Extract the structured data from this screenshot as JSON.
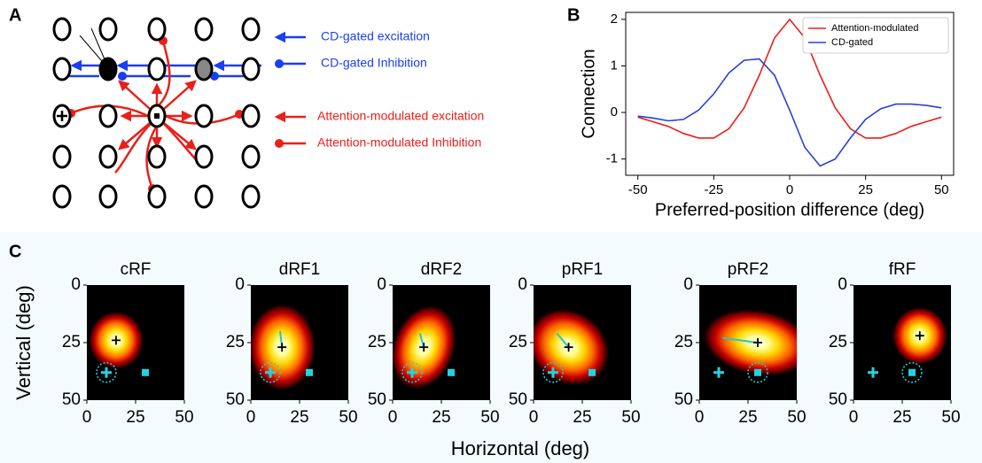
{
  "panel_labels": [
    "A",
    "B",
    "C"
  ],
  "diagram": {
    "legend": [
      "CD-gated excitation",
      "CD-gated Inhibition",
      "Attention-modulated excitation",
      "Attention-modulated Inhibition"
    ]
  },
  "panel_c": {
    "xlabel": "Horizontal (deg)",
    "ylabel": "Vertical (deg)"
  },
  "chart_data": [
    {
      "type": "line",
      "xlabel": "Preferred-position difference (deg)",
      "ylabel": "Connection",
      "x": [
        -50,
        -45,
        -40,
        -35,
        -30,
        -25,
        -20,
        -15,
        -10,
        -5,
        0,
        5,
        10,
        15,
        20,
        25,
        30,
        35,
        40,
        45,
        50
      ],
      "series": [
        {
          "name": "Attention-modulated",
          "color": "#e8201c",
          "values": [
            -0.1,
            -0.2,
            -0.3,
            -0.45,
            -0.55,
            -0.55,
            -0.35,
            0.1,
            0.8,
            1.6,
            2.0,
            1.6,
            0.8,
            0.1,
            -0.35,
            -0.55,
            -0.55,
            -0.45,
            -0.3,
            -0.2,
            -0.1
          ]
        },
        {
          "name": "CD-gated",
          "color": "#2a3fd6",
          "values": [
            -0.08,
            -0.12,
            -0.18,
            -0.15,
            0.05,
            0.4,
            0.85,
            1.12,
            1.15,
            0.8,
            0.05,
            -0.75,
            -1.15,
            -1.0,
            -0.55,
            -0.15,
            0.08,
            0.18,
            0.18,
            0.15,
            0.1
          ]
        }
      ],
      "xlim": [
        -54,
        54
      ],
      "ylim": [
        -1.35,
        2.15
      ],
      "xticks": [
        -50,
        -25,
        0,
        25,
        50
      ],
      "yticks": [
        -1,
        0,
        1,
        2
      ],
      "legend": "upper right"
    },
    {
      "type": "heatmap",
      "title": "cRF",
      "xlim": [
        0,
        50
      ],
      "ylim": [
        50,
        0
      ],
      "xticks": [
        0,
        25,
        50
      ],
      "yticks": [
        0,
        25,
        50
      ],
      "rf": {
        "x": 15,
        "y": 24,
        "sx": 9,
        "sy": 8,
        "angle": 0
      },
      "markers": [
        {
          "shape": "plus",
          "x": 10,
          "y": 38,
          "circled": true
        },
        {
          "shape": "square",
          "x": 30,
          "y": 38,
          "circled": false
        }
      ]
    },
    {
      "type": "heatmap",
      "title": "dRF1",
      "xlim": [
        0,
        50
      ],
      "ylim": [
        50,
        0
      ],
      "xticks": [
        0,
        25,
        50
      ],
      "yticks": [
        0,
        25,
        50
      ],
      "rf": {
        "x": 16,
        "y": 27,
        "sx": 11,
        "sy": 12,
        "angle": 0
      },
      "shift": {
        "x": [
          15,
          16
        ],
        "y": [
          20,
          27
        ]
      },
      "markers": [
        {
          "shape": "plus",
          "x": 10,
          "y": 38,
          "circled": true
        },
        {
          "shape": "square",
          "x": 30,
          "y": 38,
          "circled": false
        }
      ]
    },
    {
      "type": "heatmap",
      "title": "dRF2",
      "xlim": [
        0,
        50
      ],
      "ylim": [
        50,
        0
      ],
      "xticks": [
        0,
        25,
        50
      ],
      "yticks": [
        0,
        25,
        50
      ],
      "rf": {
        "x": 16,
        "y": 27,
        "sx": 10,
        "sy": 12,
        "angle": 20
      },
      "shift": {
        "x": [
          14,
          16
        ],
        "y": [
          21,
          27
        ]
      },
      "markers": [
        {
          "shape": "plus",
          "x": 10,
          "y": 38,
          "circled": true
        },
        {
          "shape": "square",
          "x": 30,
          "y": 38,
          "circled": false
        }
      ]
    },
    {
      "type": "heatmap",
      "title": "pRF1",
      "xlim": [
        0,
        50
      ],
      "ylim": [
        50,
        0
      ],
      "xticks": [
        0,
        25,
        50
      ],
      "yticks": [
        0,
        25,
        50
      ],
      "rf": {
        "x": 18,
        "y": 27,
        "sx": 14,
        "sy": 10,
        "angle": 35
      },
      "shift": {
        "x": [
          12,
          18
        ],
        "y": [
          21,
          27
        ]
      },
      "markers": [
        {
          "shape": "plus",
          "x": 10,
          "y": 38,
          "circled": true
        },
        {
          "shape": "square",
          "x": 30,
          "y": 38,
          "circled": false
        }
      ]
    },
    {
      "type": "heatmap",
      "title": "pRF2",
      "xlim": [
        0,
        50
      ],
      "ylim": [
        50,
        0
      ],
      "xticks": [
        0,
        25,
        50
      ],
      "yticks": [
        0,
        25,
        50
      ],
      "rf": {
        "x": 30,
        "y": 25,
        "sx": 18,
        "sy": 9,
        "angle": 10
      },
      "shift": {
        "x": [
          12,
          30
        ],
        "y": [
          23,
          25
        ]
      },
      "markers": [
        {
          "shape": "plus",
          "x": 10,
          "y": 38,
          "circled": false
        },
        {
          "shape": "square",
          "x": 30,
          "y": 38,
          "circled": true
        }
      ]
    },
    {
      "type": "heatmap",
      "title": "fRF",
      "xlim": [
        0,
        50
      ],
      "ylim": [
        50,
        0
      ],
      "xticks": [
        0,
        25,
        50
      ],
      "yticks": [
        0,
        25,
        50
      ],
      "rf": {
        "x": 34,
        "y": 22,
        "sx": 9,
        "sy": 8,
        "angle": 0
      },
      "markers": [
        {
          "shape": "plus",
          "x": 10,
          "y": 38,
          "circled": false
        },
        {
          "shape": "square",
          "x": 30,
          "y": 38,
          "circled": true
        }
      ]
    }
  ]
}
